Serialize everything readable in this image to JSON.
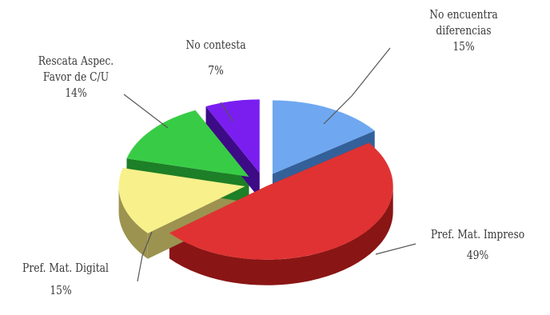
{
  "chart_data": {
    "type": "pie",
    "style": "3d-exploded",
    "slices": [
      {
        "label_lines": [
          "No encuentra",
          "diferencias"
        ],
        "value": 15,
        "value_label": "15%",
        "top_color": "#6fa8f0",
        "side_color": "#34609a"
      },
      {
        "label_lines": [
          "Pref. Mat. Impreso"
        ],
        "value": 49,
        "value_label": "49%",
        "top_color": "#e03232",
        "side_color": "#8a1515"
      },
      {
        "label_lines": [
          "Pref. Mat. Digital"
        ],
        "value": 15,
        "value_label": "15%",
        "top_color": "#f8f08a",
        "side_color": "#9c9350"
      },
      {
        "label_lines": [
          "Rescata Aspec.",
          "Favor de C/U"
        ],
        "value": 14,
        "value_label": "14%",
        "top_color": "#38cc46",
        "side_color": "#1d7f27"
      },
      {
        "label_lines": [
          "No contesta"
        ],
        "value": 7,
        "value_label": "7%",
        "top_color": "#7a1ef0",
        "side_color": "#3d0b86"
      }
    ]
  }
}
